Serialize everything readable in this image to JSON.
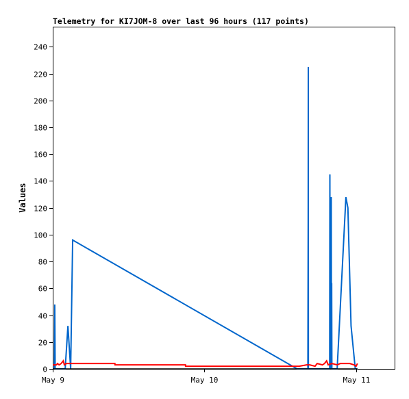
{
  "chart_data": {
    "type": "line",
    "title": "Telemetry for KI7JOM-8 over last 96 hours (117 points)",
    "xlabel": "",
    "ylabel": "Values",
    "ylim": [
      0,
      255
    ],
    "yticks": [
      0,
      20,
      40,
      60,
      80,
      100,
      120,
      140,
      160,
      180,
      200,
      220,
      240
    ],
    "xlim": [
      "2024-05-09 00:00",
      "2024-05-11 06:12"
    ],
    "xticks": [
      {
        "label": "May 9",
        "value": "2024-05-09 00:00"
      },
      {
        "label": "May 10",
        "value": "2024-05-10 00:00"
      },
      {
        "label": "May 11",
        "value": "2024-05-11 00:00"
      }
    ],
    "grid": false,
    "legend": "none",
    "series": [
      {
        "color": "#0066cc",
        "points": [
          [
            "2024-05-09 00:15",
            0
          ],
          [
            "2024-05-09 00:19",
            48
          ],
          [
            "2024-05-09 00:23",
            0
          ],
          [
            "2024-05-09 01:58",
            0
          ],
          [
            "2024-05-09 02:24",
            32
          ],
          [
            "2024-05-09 02:50",
            0
          ],
          [
            "2024-05-09 03:09",
            96
          ],
          [
            "2024-05-10 14:40",
            0
          ],
          [
            "2024-05-10 16:22",
            0
          ],
          [
            "2024-05-10 16:25",
            112
          ],
          [
            "2024-05-10 16:26",
            225
          ],
          [
            "2024-05-10 16:27",
            0
          ],
          [
            "2024-05-10 19:49",
            0
          ],
          [
            "2024-05-10 19:51",
            145
          ],
          [
            "2024-05-10 19:53",
            0
          ],
          [
            "2024-05-10 19:55",
            72
          ],
          [
            "2024-05-10 19:57",
            128
          ],
          [
            "2024-05-10 20:00",
            0
          ],
          [
            "2024-05-10 20:04",
            128
          ],
          [
            "2024-05-10 20:06",
            0
          ],
          [
            "2024-05-10 20:08",
            64
          ],
          [
            "2024-05-10 20:10",
            0
          ],
          [
            "2024-05-10 21:00",
            0
          ],
          [
            "2024-05-10 22:23",
            128
          ],
          [
            "2024-05-10 22:42",
            120
          ],
          [
            "2024-05-10 23:12",
            32
          ],
          [
            "2024-05-10 23:52",
            0
          ],
          [
            "2024-05-11 00:12",
            0
          ]
        ]
      },
      {
        "color": "#ff0000",
        "points": [
          [
            "2024-05-09 00:00",
            3
          ],
          [
            "2024-05-09 00:10",
            3
          ],
          [
            "2024-05-09 00:19",
            3
          ],
          [
            "2024-05-09 00:35",
            3
          ],
          [
            "2024-05-09 00:45",
            4
          ],
          [
            "2024-05-09 01:00",
            3
          ],
          [
            "2024-05-09 01:20",
            4
          ],
          [
            "2024-05-09 01:40",
            6
          ],
          [
            "2024-05-09 01:50",
            3
          ],
          [
            "2024-05-09 02:10",
            4
          ],
          [
            "2024-05-09 03:09",
            4
          ],
          [
            "2024-05-09 06:00",
            4
          ],
          [
            "2024-05-09 09:50",
            4
          ],
          [
            "2024-05-09 09:51",
            3
          ],
          [
            "2024-05-09 18:00",
            3
          ],
          [
            "2024-05-09 21:00",
            3
          ],
          [
            "2024-05-09 21:01",
            2
          ],
          [
            "2024-05-10 15:00",
            2
          ],
          [
            "2024-05-10 16:10",
            3
          ],
          [
            "2024-05-10 16:40",
            3
          ],
          [
            "2024-05-10 17:30",
            2
          ],
          [
            "2024-05-10 17:50",
            4
          ],
          [
            "2024-05-10 18:40",
            3
          ],
          [
            "2024-05-10 19:00",
            4
          ],
          [
            "2024-05-10 19:20",
            6
          ],
          [
            "2024-05-10 19:35",
            3
          ],
          [
            "2024-05-10 20:10",
            4
          ],
          [
            "2024-05-10 21:00",
            3
          ],
          [
            "2024-05-10 21:30",
            4
          ],
          [
            "2024-05-10 23:00",
            4
          ],
          [
            "2024-05-10 23:40",
            3
          ],
          [
            "2024-05-11 00:00",
            2
          ],
          [
            "2024-05-11 00:13",
            4
          ]
        ]
      },
      {
        "color": "#000000",
        "points": [
          [
            "2024-05-09 00:00",
            0
          ],
          [
            "2024-05-11 00:13",
            0
          ]
        ]
      }
    ]
  }
}
